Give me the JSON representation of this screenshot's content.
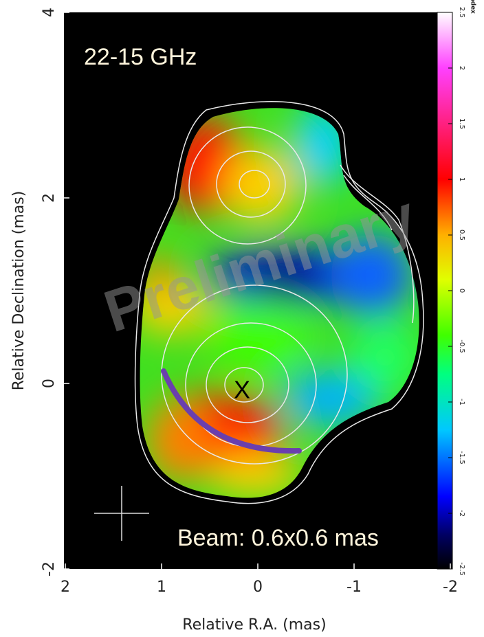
{
  "chart_data": {
    "type": "image",
    "title": "22-15 GHz",
    "xlabel": "Relative R.A. (mas)",
    "ylabel": "Relative Declination (mas)",
    "xlim": [
      2,
      -2
    ],
    "xticks": [
      2,
      1,
      0,
      -1,
      -2
    ],
    "ylim": [
      -2,
      4
    ],
    "yticks": [
      -2,
      0,
      2,
      4
    ],
    "colorbar": {
      "label": "spectral index",
      "lim": [
        -2.5,
        2.5
      ],
      "ticks": [
        -2.5,
        -2,
        -1.5,
        -1,
        -0.5,
        0,
        0.5,
        1,
        1.5,
        2,
        2.5
      ]
    },
    "annotations": [
      "Beam: 0.6x0.6 mas",
      "X"
    ],
    "watermark": "Preliminary"
  }
}
